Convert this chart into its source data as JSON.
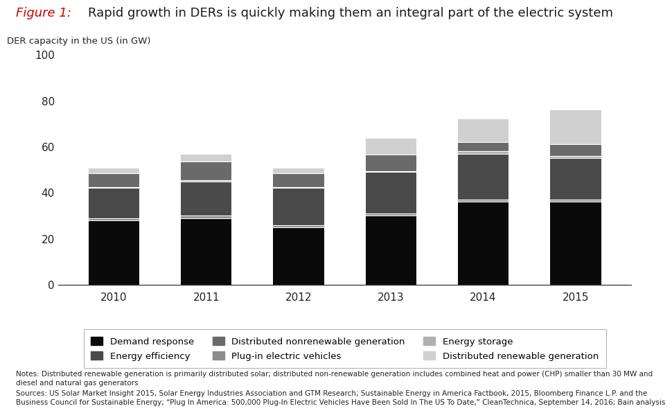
{
  "years": [
    "2010",
    "2011",
    "2012",
    "2013",
    "2014",
    "2015"
  ],
  "series": {
    "Demand response": [
      28,
      29,
      25,
      30,
      36,
      36
    ],
    "Plug-in electric vehicles": [
      1,
      1,
      1,
      1,
      1,
      1
    ],
    "Energy efficiency": [
      13,
      15,
      16,
      18,
      20,
      18
    ],
    "Energy storage": [
      0.5,
      0.5,
      0.5,
      0.5,
      1,
      1
    ],
    "Distributed nonrenewable generation": [
      6,
      8,
      6,
      7,
      4,
      5
    ],
    "Distributed renewable generation": [
      2,
      3,
      2,
      7,
      10,
      15
    ]
  },
  "colors": {
    "Demand response": "#0a0a0a",
    "Plug-in electric vehicles": "#8c8c8c",
    "Energy efficiency": "#4a4a4a",
    "Energy storage": "#b0b0b0",
    "Distributed nonrenewable generation": "#6a6a6a",
    "Distributed renewable generation": "#d0d0d0"
  },
  "stack_order": [
    "Demand response",
    "Plug-in electric vehicles",
    "Energy efficiency",
    "Energy storage",
    "Distributed nonrenewable generation",
    "Distributed renewable generation"
  ],
  "legend_order": [
    "Demand response",
    "Energy efficiency",
    "Distributed nonrenewable generation",
    "Plug-in electric vehicles",
    "Energy storage",
    "Distributed renewable generation"
  ],
  "ylabel": "DER capacity in the US (in GW)",
  "ylim": [
    0,
    100
  ],
  "yticks": [
    0,
    20,
    40,
    60,
    80,
    100
  ],
  "title_italic": "Figure 1:",
  "title_rest": "Rapid growth in DERs is quickly making them an integral part of the electric system",
  "note1": "Notes: Distributed renewable generation is primarily distributed solar; distributed non-renewable generation includes combined heat and power (CHP) smaller than 30 MW and",
  "note2": "diesel and natural gas generators",
  "source1": "Sources: US Solar Market Insight 2015, Solar Energy Industries Association and GTM Research; Sustainable Energy in America Factbook, 2015, Bloomberg Finance L.P. and the",
  "source2": "Business Council for Sustainable Energy; “Plug In America: 500,000 Plug-In Electric Vehicles Have Been Sold In The US To Date,” CleanTechnica, September 14, 2016; Bain analysis",
  "bar_width": 0.55
}
